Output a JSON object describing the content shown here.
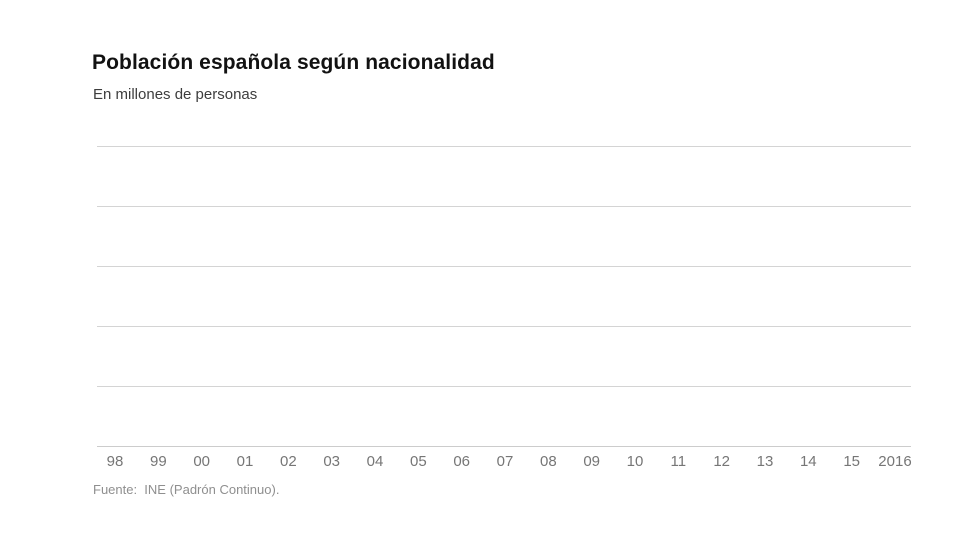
{
  "header": {
    "title": "Población española según nacionalidad",
    "subtitle": "En millones de personas"
  },
  "chart_data": {
    "type": "line",
    "title": "Población española según nacionalidad",
    "subtitle": "En millones de personas",
    "xlabel": "",
    "ylabel": "En millones de personas",
    "categories": [
      "98",
      "99",
      "00",
      "01",
      "02",
      "03",
      "04",
      "05",
      "06",
      "07",
      "08",
      "09",
      "10",
      "11",
      "12",
      "13",
      "14",
      "15",
      "2016"
    ],
    "series": [],
    "y_tick_labels": [],
    "grid": true,
    "gridline_count": 6,
    "legend_position": "none",
    "colors": {
      "gridline": "#d4d4d4",
      "axis_line": "#cccccc",
      "tick_label": "#767676",
      "title": "#121212",
      "subtitle": "#3d3d3d",
      "source": "#8f8f8f"
    }
  },
  "footer": {
    "source": "Fuente:  INE (Padrón Continuo)."
  }
}
